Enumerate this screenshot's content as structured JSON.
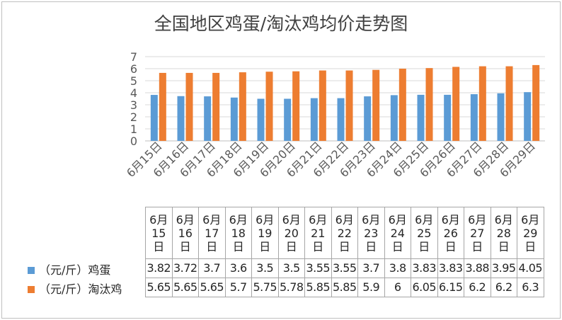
{
  "chart_data": {
    "type": "bar",
    "title": "全国地区鸡蛋/淘汰鸡均价走势图",
    "categories": [
      "6月15日",
      "6月16日",
      "6月17日",
      "6月18日",
      "6月19日",
      "6月20日",
      "6月21日",
      "6月22日",
      "6月23日",
      "6月24日",
      "6月25日",
      "6月26日",
      "6月27日",
      "6月28日",
      "6月29日"
    ],
    "table_headers": [
      [
        "6月",
        "15",
        "日"
      ],
      [
        "6月",
        "16",
        "日"
      ],
      [
        "6月",
        "17",
        "日"
      ],
      [
        "6月",
        "18",
        "日"
      ],
      [
        "6月",
        "19",
        "日"
      ],
      [
        "6月",
        "20",
        "日"
      ],
      [
        "6月",
        "21",
        "日"
      ],
      [
        "6月",
        "22",
        "日"
      ],
      [
        "6月",
        "23",
        "日"
      ],
      [
        "6月",
        "24",
        "日"
      ],
      [
        "6月",
        "25",
        "日"
      ],
      [
        "6月",
        "26",
        "日"
      ],
      [
        "6月",
        "27",
        "日"
      ],
      [
        "6月",
        "28",
        "日"
      ],
      [
        "6月",
        "29",
        "日"
      ]
    ],
    "series": [
      {
        "name": "（元/斤）鸡蛋",
        "color": "#5b9bd5",
        "values": [
          3.82,
          3.72,
          3.7,
          3.6,
          3.5,
          3.5,
          3.55,
          3.55,
          3.7,
          3.8,
          3.83,
          3.83,
          3.88,
          3.95,
          4.05
        ],
        "labels": [
          "3.82",
          "3.72",
          "3.7",
          "3.6",
          "3.5",
          "3.5",
          "3.55",
          "3.55",
          "3.7",
          "3.8",
          "3.83",
          "3.83",
          "3.88",
          "3.95",
          "4.05"
        ]
      },
      {
        "name": "（元/斤）淘汰鸡",
        "color": "#ed7d31",
        "values": [
          5.65,
          5.65,
          5.65,
          5.7,
          5.75,
          5.78,
          5.85,
          5.85,
          5.9,
          6,
          6.05,
          6.15,
          6.2,
          6.2,
          6.3
        ],
        "labels": [
          "5.65",
          "5.65",
          "5.65",
          "5.7",
          "5.75",
          "5.78",
          "5.85",
          "5.85",
          "5.9",
          "6",
          "6.05",
          "6.15",
          "6.2",
          "6.2",
          "6.3"
        ]
      }
    ],
    "ylim": [
      0,
      7
    ],
    "yticks": [
      "0",
      "1",
      "2",
      "3",
      "4",
      "5",
      "6",
      "7"
    ],
    "grid": true,
    "legend": "data-table"
  }
}
